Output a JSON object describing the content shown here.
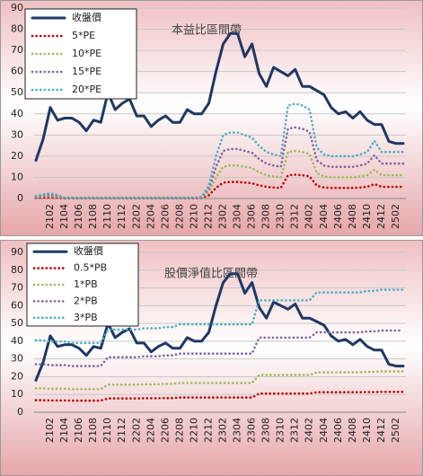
{
  "chart_data": [
    {
      "type": "line",
      "title": "本益比區間帶",
      "categories": [
        null,
        null,
        "2102",
        null,
        "2104",
        null,
        "2106",
        null,
        "2108",
        null,
        "2110",
        null,
        "2112",
        null,
        "2202",
        null,
        "2204",
        null,
        "2206",
        null,
        "2208",
        null,
        "2210",
        null,
        "2212",
        null,
        "2302",
        null,
        "2304",
        null,
        "2306",
        null,
        "2308",
        null,
        "2310",
        null,
        "2312",
        null,
        "2402",
        null,
        "2404",
        null,
        "2406",
        null,
        "2408",
        null,
        "2410",
        null,
        "2412",
        null,
        "2502",
        null
      ],
      "series": [
        {
          "name": "收盤價",
          "color": "#1f3864",
          "values": [
            18,
            28,
            43,
            37,
            38,
            38,
            36,
            32,
            37,
            36,
            50,
            42,
            45,
            47,
            39,
            39,
            34,
            37,
            39,
            36,
            36,
            42,
            40,
            40,
            45,
            60,
            73,
            78,
            78,
            67,
            73,
            59,
            53,
            62,
            60,
            58,
            61,
            53,
            53,
            51,
            49,
            43,
            40,
            41,
            38,
            41,
            37,
            35,
            35,
            27,
            26,
            26
          ]
        },
        {
          "name": "5*PE",
          "color": "#c00000",
          "values": [
            0.3,
            0.5,
            0.6,
            0.4,
            0.1,
            0.1,
            0.1,
            0.1,
            0.1,
            0.1,
            0.1,
            0.1,
            0.1,
            0.1,
            0.1,
            0.1,
            0.1,
            0.1,
            0.1,
            0.1,
            0.1,
            0.1,
            0.1,
            0.2,
            1.5,
            5,
            7.5,
            7.8,
            7.8,
            7.5,
            7.2,
            6.2,
            5.5,
            5.2,
            5.0,
            11,
            11.2,
            11,
            10.5,
            6,
            5.2,
            5,
            5,
            5,
            5,
            5.2,
            5.5,
            6.8,
            5.5,
            5.5,
            5.5,
            5.5
          ]
        },
        {
          "name": "10*PE",
          "color": "#9bbb59",
          "values": [
            0.6,
            1,
            1.2,
            0.8,
            0.2,
            0.2,
            0.2,
            0.2,
            0.2,
            0.2,
            0.2,
            0.2,
            0.2,
            0.2,
            0.2,
            0.2,
            0.2,
            0.2,
            0.2,
            0.2,
            0.2,
            0.2,
            0.2,
            0.4,
            3,
            10,
            15,
            15.6,
            15.6,
            15,
            14.4,
            12.4,
            11,
            10.4,
            10,
            22,
            22.4,
            22,
            21,
            12,
            10.4,
            10,
            10,
            10,
            10,
            10.4,
            11,
            13.6,
            11,
            11,
            11,
            11
          ]
        },
        {
          "name": "15*PE",
          "color": "#8064a2",
          "values": [
            0.9,
            1.5,
            1.8,
            1.2,
            0.3,
            0.3,
            0.3,
            0.3,
            0.3,
            0.3,
            0.3,
            0.3,
            0.3,
            0.3,
            0.3,
            0.3,
            0.3,
            0.3,
            0.3,
            0.3,
            0.3,
            0.3,
            0.3,
            0.6,
            4.5,
            15,
            22.5,
            23.4,
            23.4,
            22.5,
            21.6,
            18.6,
            16.5,
            15.6,
            15,
            33,
            33.6,
            33,
            31.5,
            18,
            15.6,
            15,
            15,
            15,
            15,
            15.6,
            16.5,
            20.4,
            16.5,
            16.5,
            16.5,
            16.5
          ]
        },
        {
          "name": "20*PE",
          "color": "#4bacc6",
          "values": [
            1.2,
            2,
            2.4,
            1.6,
            0.4,
            0.4,
            0.4,
            0.4,
            0.4,
            0.4,
            0.4,
            0.4,
            0.4,
            0.4,
            0.4,
            0.4,
            0.4,
            0.4,
            0.4,
            0.4,
            0.4,
            0.4,
            0.4,
            0.8,
            6,
            20,
            30,
            31.2,
            31.2,
            30,
            28.8,
            24.8,
            22,
            20.8,
            20,
            44,
            44.8,
            44,
            42,
            24,
            20.8,
            20,
            20,
            20,
            20,
            20.8,
            22,
            27.2,
            22,
            22,
            22,
            22
          ]
        }
      ],
      "ylim": [
        0,
        90
      ],
      "yticks": [
        0,
        10,
        20,
        30,
        40,
        50,
        60,
        70,
        80,
        90
      ],
      "grid": true,
      "legend": "top-left"
    },
    {
      "type": "line",
      "title": "股價淨值比區間帶",
      "categories": [
        null,
        null,
        "2102",
        null,
        "2104",
        null,
        "2106",
        null,
        "2108",
        null,
        "2110",
        null,
        "2112",
        null,
        "2202",
        null,
        "2204",
        null,
        "2206",
        null,
        "2208",
        null,
        "2210",
        null,
        "2212",
        null,
        "2302",
        null,
        "2304",
        null,
        "2306",
        null,
        "2308",
        null,
        "2310",
        null,
        "2312",
        null,
        "2402",
        null,
        "2404",
        null,
        "2406",
        null,
        "2408",
        null,
        "2410",
        null,
        "2412",
        null,
        "2502",
        null
      ],
      "series": [
        {
          "name": "收盤價",
          "color": "#1f3864",
          "values": [
            18,
            28,
            43,
            37,
            38,
            38,
            36,
            32,
            37,
            36,
            50,
            42,
            45,
            47,
            39,
            39,
            34,
            37,
            39,
            36,
            36,
            42,
            40,
            40,
            45,
            60,
            73,
            78,
            78,
            67,
            73,
            59,
            53,
            62,
            60,
            58,
            61,
            53,
            53,
            51,
            49,
            43,
            40,
            41,
            38,
            41,
            37,
            35,
            35,
            27,
            26,
            26
          ]
        },
        {
          "name": "0.5*PB",
          "color": "#c00000",
          "values": [
            6.8,
            6.8,
            6.6,
            6.6,
            6.6,
            6.5,
            6.5,
            6.5,
            6.5,
            6.5,
            7.8,
            7.8,
            7.8,
            7.8,
            7.8,
            7.9,
            7.9,
            7.9,
            8,
            8,
            8.3,
            8.3,
            8.3,
            8.3,
            8.3,
            8.3,
            8.3,
            8.3,
            8.3,
            8.3,
            8.3,
            10.5,
            10.5,
            10.5,
            10.5,
            10.5,
            10.5,
            10.5,
            10.5,
            11.3,
            11.3,
            11.3,
            11.3,
            11.3,
            11.3,
            11.3,
            11.4,
            11.4,
            11.5,
            11.5,
            11.5,
            11.5
          ]
        },
        {
          "name": "1*PB",
          "color": "#9bbb59",
          "values": [
            13.5,
            13.5,
            13.25,
            13.25,
            13.25,
            13,
            13,
            13,
            13,
            13,
            15.5,
            15.5,
            15.5,
            15.5,
            15.5,
            15.75,
            15.75,
            15.75,
            16,
            16,
            16.5,
            16.5,
            16.5,
            16.5,
            16.5,
            16.5,
            16.5,
            16.5,
            16.5,
            16.5,
            16.5,
            21,
            21,
            21,
            21,
            21,
            21,
            21,
            21,
            22.5,
            22.5,
            22.5,
            22.5,
            22.5,
            22.5,
            22.5,
            22.75,
            22.75,
            23,
            23,
            23,
            23
          ]
        },
        {
          "name": "2*PB",
          "color": "#8064a2",
          "values": [
            27,
            27,
            26.5,
            26.5,
            26.5,
            26,
            26,
            26,
            26,
            26,
            31,
            31,
            31,
            31,
            31,
            31.5,
            31.5,
            31.5,
            32,
            32,
            33,
            33,
            33,
            33,
            33,
            33,
            33,
            33,
            33,
            33,
            33,
            42,
            42,
            42,
            42,
            42,
            42,
            42,
            42,
            45,
            45,
            45,
            45,
            45,
            45,
            45,
            45.5,
            45.5,
            46,
            46,
            46,
            46
          ]
        },
        {
          "name": "3*PB",
          "color": "#4bacc6",
          "values": [
            40.5,
            40.5,
            39.8,
            39.8,
            39.8,
            39,
            39,
            39,
            39,
            39,
            46.5,
            46.5,
            46.5,
            46.5,
            46.5,
            47.3,
            47.3,
            47.3,
            48,
            48,
            49.5,
            49.5,
            49.5,
            49.5,
            49.5,
            49.5,
            49.5,
            49.5,
            49.5,
            49.5,
            49.5,
            63,
            63,
            63,
            63,
            63,
            63,
            63,
            63,
            67.5,
            67.5,
            67.5,
            67.5,
            67.5,
            67.5,
            67.5,
            68.3,
            68.3,
            69,
            69,
            69,
            69
          ]
        }
      ],
      "ylim": [
        0,
        90
      ],
      "yticks": [
        0,
        10,
        20,
        30,
        40,
        50,
        60,
        70,
        80,
        90
      ],
      "grid": true,
      "legend": "top-left"
    }
  ]
}
